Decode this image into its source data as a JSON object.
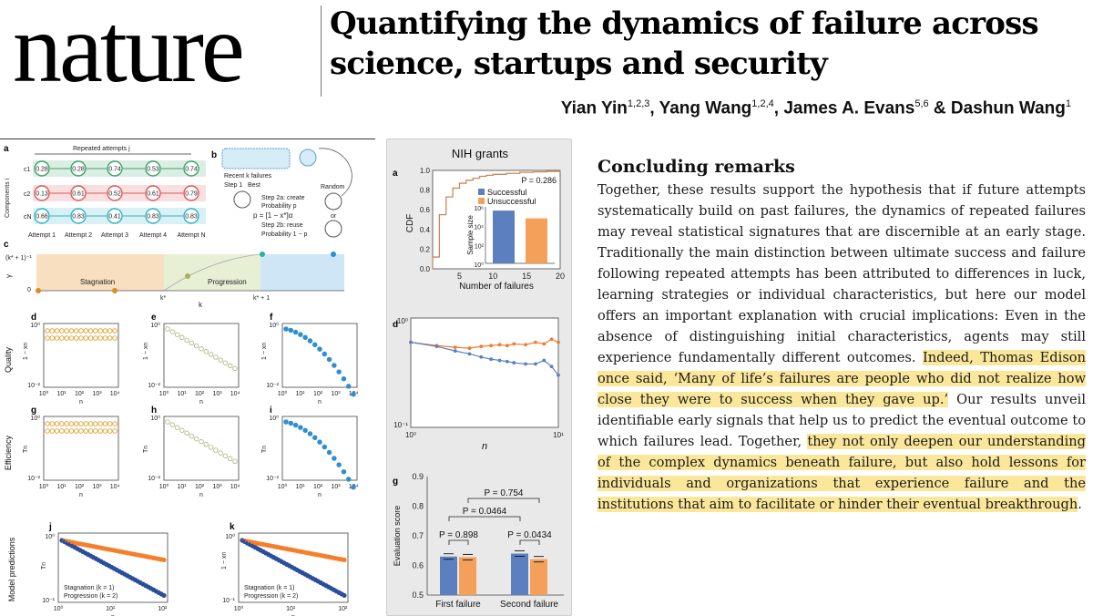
{
  "header": {
    "logo_text": "nature",
    "title": "Quantifying the dynamics of failure across science, startups and security",
    "authors": [
      {
        "name": "Yian Yin",
        "aff": "1,2,3",
        "sep": ", "
      },
      {
        "name": "Yang Wang",
        "aff": "1,2,4",
        "sep": ", "
      },
      {
        "name": "James A. Evans",
        "aff": "5,6",
        "sep": " & "
      },
      {
        "name": "Dashun Wang",
        "aff": "1",
        "sep": ""
      }
    ]
  },
  "article": {
    "heading": "Concluding remarks",
    "paragraph_parts": [
      {
        "text": "Together, these results support the hypothesis that if future attempts systematically build on past failures, the dynamics of repeated failures may reveal statistical signatures that are discernible at an early stage. Traditionally the main distinction between ultimate success and fail­ure following repeated attempts has been attributed to differences in luck, learning strategies or individual characteristics, but here our model offers an important explanation with crucial implications: Even in the absence of distinguishing initial characteristics, agents may still experience fundamentally different outcomes. ",
        "highlight": false
      },
      {
        "text": "Indeed, Thomas Edison once said, ‘Many of life’s failures are people who did not real­ize how close they were to success when they gave up.’",
        "highlight": true
      },
      {
        "text": " Our results unveil identifiable early signals that help us to predict the eventual outcome to which failures lead. Together, ",
        "highlight": false
      },
      {
        "text": "they not only deepen our understanding of the complex dynamics beneath failure, but also hold lessons for individuals and organizations that experience failure and the institutions that aim to facilitate or hinder their eventual breakthrough",
        "highlight": true
      },
      {
        "text": ".",
        "highlight": false
      }
    ],
    "highlight_color": "#fbe79a"
  },
  "figure_left": {
    "panel_labels": [
      "a",
      "b",
      "c",
      "d",
      "e",
      "f",
      "g",
      "h",
      "i",
      "j",
      "k"
    ],
    "panel_a": {
      "header": "Repeated attempts j",
      "yaxis": "Components i",
      "row_labels": [
        "c1",
        "c2",
        "cN"
      ],
      "attempts": [
        "Attempt 1",
        "Attempt 2",
        "Attempt 3",
        "Attempt 4",
        "Attempt N"
      ],
      "rows": [
        {
          "color": "#3aa36a",
          "values": [
            "0.28",
            "0.28",
            "0.74",
            "0.53",
            "0.74"
          ]
        },
        {
          "color": "#e05555",
          "values": [
            "0.13",
            "0.61",
            "0.52",
            "0.61",
            "0.79"
          ]
        },
        {
          "color": "#2fb3c8",
          "values": [
            "0.66",
            "0.83",
            "0.41",
            "0.83",
            "0.83"
          ]
        }
      ]
    },
    "panel_b": {
      "recent": "Recent k failures",
      "step1": "Step 1",
      "best": "Best",
      "random": "Random",
      "or": "or",
      "formula": "p = [1 − x*]α",
      "step2a": "Step 2a: create",
      "prob_p": "Probability p",
      "step2b": "Step 2b: reuse",
      "prob_1p": "Probability 1 − p"
    },
    "panel_c": {
      "ylabel": "γ",
      "ytick_top": "(k* + 1)⁻¹",
      "ytick_zero": "0",
      "regions": [
        "Stagnation",
        "Progression"
      ],
      "xticks": [
        "k*",
        "k",
        "k* + 1"
      ],
      "region_colors": [
        "#f8dfbf",
        "#e7efd5",
        "#cfe6f7"
      ]
    },
    "grid_panels": {
      "quality_ylabel": "Quality",
      "efficiency_ylabel": "Efficiency",
      "model_ylabel": "Model predictions",
      "d_ylabel": "1 − xn",
      "g_ylabel": "Tn",
      "yticks_top": [
        "10⁰",
        "10⁻¹",
        "10⁻²"
      ],
      "xticks": [
        "10⁰",
        "10¹",
        "10²",
        "10³",
        "10⁴"
      ],
      "xlabel": "n",
      "colors": [
        "#e0a030",
        "#b3b88a",
        "#2f8fd0"
      ]
    },
    "panels_jk": {
      "j_ylabel": "Tn",
      "k_ylabel": "1 − xn",
      "yticks": [
        "10⁰",
        "10⁻¹"
      ],
      "xticks": [
        "10⁰",
        "10¹",
        "10²"
      ],
      "xlabel": "n",
      "legend": [
        "Stagnation (k = 1)",
        "Progression (k = 2)"
      ],
      "legend_colors": [
        "#f57f2a",
        "#2a4d9c"
      ]
    }
  },
  "figure_middle": {
    "title": "NIH grants",
    "panel_labels": [
      "a",
      "d",
      "g"
    ],
    "colors": {
      "successful": "#5b7fbf",
      "unsuccessful": "#f5a05a"
    }
  },
  "chart_data": [
    {
      "type": "line",
      "panel": "a",
      "xlabel": "Number of failures",
      "ylabel": "CDF",
      "annotation": "P = 0.286",
      "xticks": [
        "5",
        "10",
        "15",
        "20"
      ],
      "yticks": [
        "0.0",
        "0.2",
        "0.4",
        "0.6",
        "0.8",
        "1.0"
      ],
      "xlim": [
        1,
        20
      ],
      "ylim": [
        0,
        1
      ],
      "series": [
        {
          "name": "",
          "x": [
            1,
            2,
            3,
            4,
            5,
            6,
            7,
            8,
            9,
            10,
            12,
            14,
            16,
            18,
            20
          ],
          "y": [
            0.12,
            0.55,
            0.73,
            0.82,
            0.87,
            0.9,
            0.92,
            0.94,
            0.95,
            0.96,
            0.97,
            0.98,
            0.985,
            0.99,
            1.0
          ]
        }
      ],
      "inset": {
        "type": "bar",
        "ylabel": "Sample size",
        "yscale": "log",
        "yticks": [
          "10⁶",
          "10⁴",
          "10²",
          "10⁰"
        ],
        "categories": [
          "Successful",
          "Unsuccessful"
        ],
        "values": [
          400000,
          60000
        ]
      }
    },
    {
      "type": "line",
      "panel": "d",
      "xlabel": "n",
      "yscale": "log",
      "xscale": "log",
      "yticks": [
        "10⁰",
        "10⁻¹"
      ],
      "xticks": [
        "10⁰",
        "10¹"
      ],
      "xlim": [
        1,
        10
      ],
      "ylim": [
        0.1,
        1
      ],
      "series": [
        {
          "name": "Unsuccessful",
          "x": [
            1,
            1.5,
            2,
            2.5,
            3,
            3.5,
            4,
            4.5,
            5,
            6,
            7,
            8,
            9,
            10
          ],
          "y": [
            0.6,
            0.56,
            0.54,
            0.53,
            0.55,
            0.56,
            0.57,
            0.56,
            0.58,
            0.57,
            0.6,
            0.58,
            0.64,
            0.6
          ]
        },
        {
          "name": "Successful",
          "x": [
            1,
            1.5,
            2,
            2.5,
            3,
            3.5,
            4,
            4.5,
            5,
            6,
            7,
            8,
            9,
            10
          ],
          "y": [
            0.6,
            0.55,
            0.5,
            0.47,
            0.44,
            0.42,
            0.41,
            0.4,
            0.39,
            0.38,
            0.38,
            0.41,
            0.36,
            0.3
          ]
        }
      ]
    },
    {
      "type": "bar",
      "panel": "g",
      "ylabel": "Evaluation score",
      "ylim": [
        0.5,
        0.9
      ],
      "yticks": [
        "0.9",
        "0.8",
        "0.7",
        "0.6",
        "0.5"
      ],
      "categories": [
        "First failure",
        "Second failure"
      ],
      "series": [
        {
          "name": "Successful",
          "values": [
            0.63,
            0.64
          ]
        },
        {
          "name": "Unsuccessful",
          "values": [
            0.628,
            0.621
          ]
        }
      ],
      "annotations": [
        "P = 0.754",
        "P = 0.0464",
        "P = 0.898",
        "P = 0.0434"
      ]
    }
  ]
}
